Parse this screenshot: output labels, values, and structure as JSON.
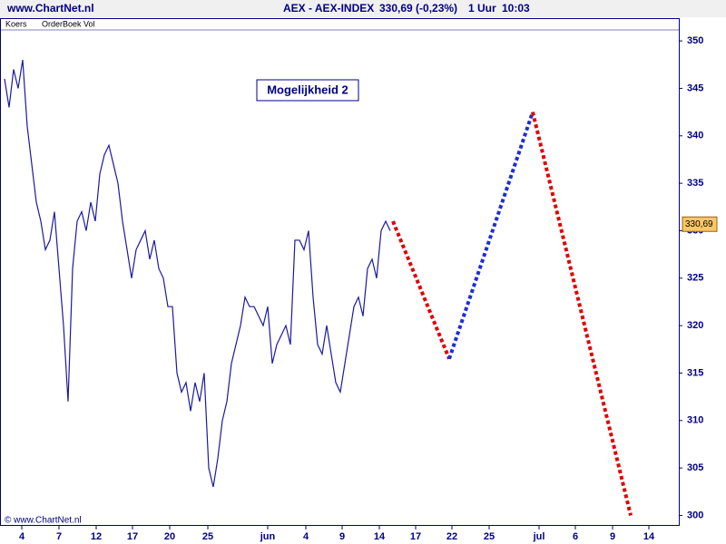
{
  "chart_data": {
    "type": "line",
    "source": "www.ChartNet.nl",
    "title": "AEX - AEX-INDEX",
    "quote": "330,69 (-0,23%)",
    "interval": "1 Uur",
    "time": "10:03",
    "panels": [
      "Koers",
      "OrderBoek Vol"
    ],
    "annotation": "Mogelijkheid 2",
    "watermark": "© www.ChartNet.nl",
    "last_label": {
      "value": 330.69,
      "label": "330,69"
    },
    "xlim": [
      0,
      748
    ],
    "xticks": [
      {
        "value": 24,
        "label": "4"
      },
      {
        "value": 65,
        "label": "7"
      },
      {
        "value": 106,
        "label": "12"
      },
      {
        "value": 146,
        "label": "17"
      },
      {
        "value": 187,
        "label": "20"
      },
      {
        "value": 229,
        "label": "25"
      },
      {
        "value": 295,
        "label": "jun"
      },
      {
        "value": 337,
        "label": "4"
      },
      {
        "value": 377,
        "label": "9"
      },
      {
        "value": 418,
        "label": "14"
      },
      {
        "value": 458,
        "label": "17"
      },
      {
        "value": 498,
        "label": "22"
      },
      {
        "value": 539,
        "label": "25"
      },
      {
        "value": 594,
        "label": "jul"
      },
      {
        "value": 634,
        "label": "6"
      },
      {
        "value": 675,
        "label": "9"
      },
      {
        "value": 715,
        "label": "14"
      }
    ],
    "ylim": [
      298.9,
      352.4
    ],
    "yticks": [
      300,
      305,
      310,
      315,
      320,
      325,
      330,
      335,
      340,
      345,
      350
    ],
    "series": [
      {
        "name": "Koers",
        "color": "#1a1aa0",
        "x": [
          5,
          10,
          15,
          20,
          25,
          30,
          35,
          40,
          45,
          50,
          55,
          60,
          65,
          70,
          75,
          80,
          85,
          90,
          95,
          100,
          105,
          110,
          115,
          120,
          125,
          130,
          135,
          140,
          145,
          150,
          155,
          160,
          165,
          170,
          175,
          180,
          185,
          190,
          195,
          200,
          205,
          210,
          215,
          220,
          225,
          230,
          235,
          240,
          245,
          250,
          255,
          260,
          265,
          270,
          275,
          280,
          285,
          290,
          295,
          300,
          305,
          310,
          315,
          320,
          325,
          330,
          335,
          340,
          345,
          350,
          355,
          360,
          365,
          370,
          375,
          380,
          385,
          390,
          395,
          400,
          405,
          410,
          415,
          420,
          425,
          430
        ],
        "values": [
          346,
          343,
          347,
          345,
          348,
          341,
          337,
          333,
          331,
          328,
          329,
          332,
          326,
          320,
          312,
          326,
          331,
          332,
          330,
          333,
          331,
          336,
          338,
          339,
          337,
          335,
          331,
          328,
          325,
          328,
          329,
          330,
          327,
          329,
          326,
          325,
          322,
          322,
          315,
          313,
          314,
          311,
          314,
          312,
          315,
          305,
          303,
          306,
          310,
          312,
          316,
          318,
          320,
          323,
          322,
          322,
          321,
          320,
          322,
          316,
          318,
          319,
          320,
          318,
          329,
          329,
          328,
          330,
          323,
          318,
          317,
          320,
          317,
          314,
          313,
          316,
          319,
          322,
          323,
          321,
          326,
          327,
          325,
          330,
          331,
          330
        ]
      }
    ],
    "projections": [
      {
        "color": "#e00000",
        "x": [
          433,
          495
        ],
        "values": [
          331,
          316.5
        ]
      },
      {
        "color": "#1c2fd0",
        "x": [
          495,
          587
        ],
        "values": [
          316.5,
          342.5
        ]
      },
      {
        "color": "#e00000",
        "x": [
          587,
          695
        ],
        "values": [
          342.5,
          300
        ]
      }
    ]
  }
}
